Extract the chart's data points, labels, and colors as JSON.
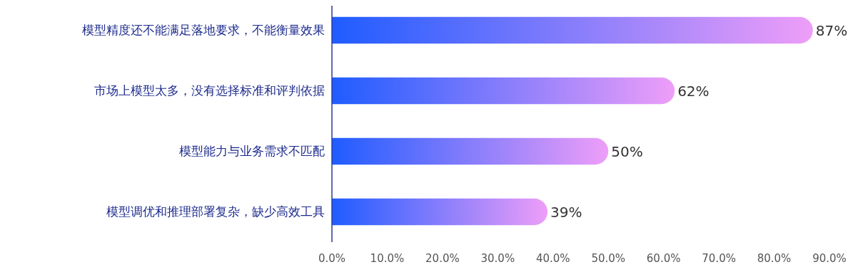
{
  "chart_data": {
    "type": "bar",
    "orientation": "horizontal",
    "categories": [
      "模型精度还不能满足落地要求，不能衡量效果",
      "市场上模型太多，没有选择标准和评判依据",
      "模型能力与业务需求不匹配",
      "模型调优和推理部署复杂，缺少高效工具"
    ],
    "series": [
      {
        "color": "#1f5cff",
        "values": [
          87,
          62,
          50,
          39
        ]
      }
    ],
    "value_labels": [
      "87%",
      "62%",
      "50%",
      "39%"
    ],
    "xlim": [
      0,
      90
    ],
    "xticks": [
      {
        "value": 0,
        "label": "0.0%"
      },
      {
        "value": 10,
        "label": "10.0%"
      },
      {
        "value": 20,
        "label": "20.0%"
      },
      {
        "value": 30,
        "label": "30.0%"
      },
      {
        "value": 40,
        "label": "40.0%"
      },
      {
        "value": 50,
        "label": "50.0%"
      },
      {
        "value": 60,
        "label": "60.0%"
      },
      {
        "value": 70,
        "label": "70.0%"
      },
      {
        "value": 80,
        "label": "80.0%"
      },
      {
        "value": 90,
        "label": "90.0%"
      }
    ],
    "data_labels": false
  }
}
